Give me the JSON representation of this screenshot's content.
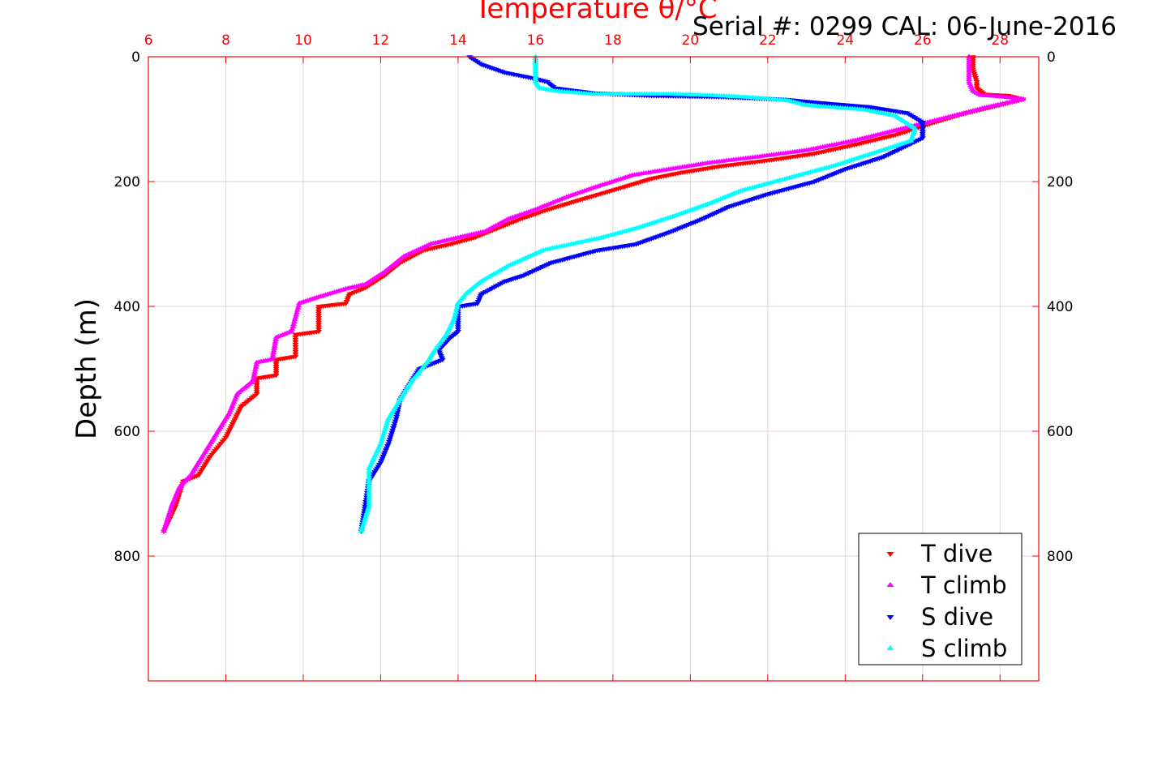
{
  "serial_label": "Serial #: 0299 CAL: 06-June-2016",
  "chart_data": {
    "type": "scatter",
    "title": "Temperature θ/°C",
    "xlabel": "Temperature θ/°C",
    "ylabel": "Depth (m)",
    "xlim": [
      6,
      29
    ],
    "ylim": [
      1000,
      0
    ],
    "x_ticks": [
      6,
      8,
      10,
      12,
      14,
      16,
      18,
      20,
      22,
      24,
      26,
      28
    ],
    "y_ticks": [
      0,
      200,
      400,
      600,
      800
    ],
    "grid": true,
    "legend_position": "bottom-right",
    "colors": {
      "axis_top": "#ff0000",
      "grid": "#e6d3d8"
    },
    "series": [
      {
        "name": "T dive",
        "color": "#ff0000",
        "marker": "triangle-down",
        "x": [
          27.3,
          27.3,
          27.4,
          27.4,
          27.6,
          28.2,
          28.6,
          27.8,
          27.0,
          26.3,
          25.3,
          24.3,
          23.2,
          22.1,
          20.8,
          19.8,
          19.0,
          18.2,
          17.1,
          16.3,
          15.6,
          15.0,
          14.4,
          13.8,
          13.1,
          12.5,
          12.1,
          11.6,
          11.2,
          11.1,
          10.4,
          10.4,
          9.8,
          9.8,
          9.3,
          9.3,
          8.8,
          8.8,
          8.4,
          8.2,
          8.0,
          7.6,
          7.3,
          6.9,
          6.7,
          6.4
        ],
        "y": [
          0,
          20,
          40,
          50,
          60,
          62,
          68,
          80,
          92,
          105,
          125,
          140,
          155,
          165,
          175,
          185,
          195,
          210,
          230,
          245,
          260,
          275,
          290,
          300,
          310,
          330,
          350,
          370,
          380,
          395,
          400,
          440,
          445,
          480,
          485,
          510,
          515,
          540,
          560,
          585,
          610,
          640,
          670,
          680,
          720,
          760
        ]
      },
      {
        "name": "T climb",
        "color": "#ff00ff",
        "marker": "triangle-up",
        "x": [
          27.2,
          27.2,
          27.2,
          27.3,
          27.5,
          28.0,
          28.6,
          27.6,
          26.6,
          25.5,
          24.2,
          23.0,
          21.8,
          20.5,
          19.5,
          18.5,
          17.5,
          16.8,
          16.0,
          15.3,
          14.7,
          14.0,
          13.3,
          12.6,
          12.1,
          11.6,
          11.1,
          10.4,
          9.9,
          9.7,
          9.3,
          9.2,
          8.8,
          8.7,
          8.3,
          8.1,
          7.8,
          7.4,
          7.1,
          6.8,
          6.6,
          6.4
        ],
        "y": [
          0,
          20,
          40,
          55,
          62,
          64,
          68,
          82,
          98,
          115,
          135,
          150,
          160,
          170,
          180,
          190,
          210,
          225,
          245,
          260,
          280,
          290,
          300,
          320,
          345,
          365,
          372,
          385,
          395,
          440,
          450,
          485,
          490,
          520,
          540,
          570,
          600,
          640,
          670,
          690,
          720,
          760
        ]
      },
      {
        "name": "S dive",
        "color": "#0000ff",
        "marker": "triangle-down",
        "x": [
          14.3,
          14.6,
          15.2,
          16.0,
          16.3,
          16.5,
          17.5,
          19.0,
          20.8,
          22.4,
          23.6,
          24.6,
          25.6,
          26.0,
          26.0,
          25.0,
          24.0,
          23.2,
          22.0,
          21.0,
          20.3,
          19.5,
          18.6,
          17.6,
          16.4,
          15.7,
          15.2,
          14.6,
          14.5,
          14.0,
          14.0,
          13.8,
          13.5,
          13.6,
          13.0,
          12.8,
          12.5,
          12.4,
          12.2,
          12.0,
          11.7,
          11.6,
          11.5
        ],
        "y": [
          0,
          12,
          25,
          35,
          40,
          50,
          58,
          62,
          64,
          68,
          75,
          80,
          90,
          105,
          130,
          160,
          180,
          200,
          220,
          240,
          260,
          280,
          300,
          310,
          330,
          350,
          360,
          380,
          395,
          400,
          440,
          450,
          470,
          485,
          500,
          520,
          550,
          580,
          620,
          650,
          680,
          720,
          760
        ]
      },
      {
        "name": "S climb",
        "color": "#00ffff",
        "marker": "triangle-up",
        "x": [
          16.0,
          16.0,
          16.0,
          16.1,
          16.5,
          17.5,
          18.5,
          19.5,
          20.5,
          21.5,
          22.5,
          23.0,
          24.5,
          25.3,
          25.8,
          25.7,
          24.7,
          23.7,
          22.5,
          21.3,
          20.5,
          19.6,
          18.6,
          17.7,
          16.2,
          15.3,
          14.6,
          14.2,
          14.0,
          13.9,
          13.7,
          13.4,
          13.2,
          12.8,
          12.5,
          12.2,
          12.0,
          11.7,
          11.7,
          11.7,
          11.5
        ],
        "y": [
          0,
          20,
          40,
          50,
          55,
          60,
          60,
          60,
          62,
          65,
          70,
          78,
          85,
          95,
          115,
          135,
          155,
          175,
          195,
          215,
          235,
          255,
          275,
          290,
          310,
          335,
          360,
          380,
          395,
          420,
          445,
          470,
          490,
          520,
          550,
          580,
          620,
          660,
          690,
          720,
          760
        ]
      }
    ]
  }
}
